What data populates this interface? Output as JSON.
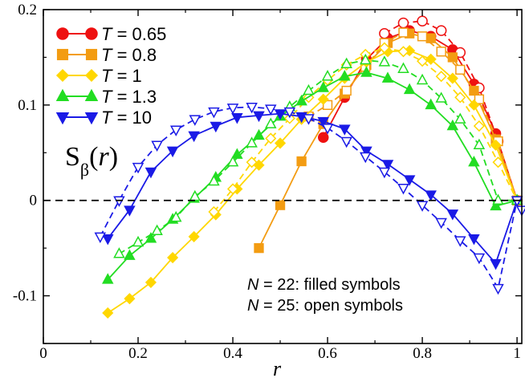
{
  "chart_data": {
    "type": "line",
    "title": "",
    "xlabel": "r",
    "ylabel": "S_β(r)",
    "ylabel_display": "Sβ(r)",
    "xlim": [
      0,
      1.01
    ],
    "ylim": [
      -0.15,
      0.2
    ],
    "xticks": [
      {
        "value": 0,
        "label": "0"
      },
      {
        "value": 0.2,
        "label": "0.2"
      },
      {
        "value": 0.4,
        "label": "0.4"
      },
      {
        "value": 0.6,
        "label": "0.6"
      },
      {
        "value": 0.8,
        "label": "0.8"
      },
      {
        "value": 1,
        "label": "1"
      }
    ],
    "yticks": [
      {
        "value": -0.1,
        "label": "-0.1"
      },
      {
        "value": 0,
        "label": "0"
      },
      {
        "value": 0.1,
        "label": "0.1"
      },
      {
        "value": 0.2,
        "label": "0.2"
      }
    ],
    "zero_line": {
      "style": "dashed",
      "color": "#000000"
    },
    "grid": false,
    "legend": {
      "placement": "top-left",
      "entries": [
        {
          "var": "T",
          "text": " = 0.65"
        },
        {
          "var": "T",
          "text": " = 0.8"
        },
        {
          "var": "T",
          "text": " = 1"
        },
        {
          "var": "T",
          "text": " = 1.3"
        },
        {
          "var": "T",
          "text": " = 10"
        }
      ]
    },
    "annotations": [
      {
        "var": "N",
        "text": " = 22: filled symbols"
      },
      {
        "var": "N",
        "text": " = 25: open symbols"
      }
    ],
    "series": [
      {
        "label": "T = 0.65",
        "size": "N = 22",
        "style": "filled",
        "marker": "circle",
        "color": "#ee1111",
        "x": [
          0.591,
          0.636,
          0.682,
          0.727,
          0.773,
          0.818,
          0.864,
          0.909,
          0.955,
          1.0
        ],
        "y": [
          0.066,
          0.108,
          0.148,
          0.17,
          0.178,
          0.172,
          0.158,
          0.122,
          0.07,
          0.0
        ]
      },
      {
        "label": "T = 0.65",
        "size": "N = 25",
        "style": "open",
        "marker": "circle",
        "color": "#ee1111",
        "x": [
          0.72,
          0.76,
          0.8,
          0.84,
          0.88,
          0.92,
          0.96,
          1.0
        ],
        "y": [
          0.175,
          0.186,
          0.188,
          0.178,
          0.155,
          0.118,
          0.062,
          0.0
        ]
      },
      {
        "label": "T = 0.8",
        "size": "N = 22",
        "style": "filled",
        "marker": "square",
        "color": "#f39c12",
        "x": [
          0.455,
          0.5,
          0.545,
          0.591,
          0.636,
          0.682,
          0.727,
          0.773,
          0.818,
          0.864,
          0.909,
          0.955,
          1.0
        ],
        "y": [
          -0.05,
          -0.005,
          0.041,
          0.08,
          0.112,
          0.142,
          0.165,
          0.175,
          0.17,
          0.15,
          0.115,
          0.064,
          0.0
        ]
      },
      {
        "label": "T = 0.8",
        "size": "N = 25",
        "style": "open",
        "marker": "square",
        "color": "#f39c12",
        "x": [
          0.56,
          0.6,
          0.64,
          0.68,
          0.72,
          0.76,
          0.8,
          0.84,
          0.88,
          0.92,
          0.96,
          1.0
        ],
        "y": [
          0.088,
          0.1,
          0.115,
          0.14,
          0.165,
          0.176,
          0.172,
          0.156,
          0.137,
          0.106,
          0.062,
          0.0
        ]
      },
      {
        "label": "T = 1",
        "size": "N = 22",
        "style": "filled",
        "marker": "diamond",
        "color": "#ffd700",
        "x": [
          0.136,
          0.182,
          0.227,
          0.273,
          0.318,
          0.364,
          0.409,
          0.455,
          0.5,
          0.545,
          0.591,
          0.636,
          0.682,
          0.727,
          0.773,
          0.818,
          0.864,
          0.909,
          0.955,
          1.0
        ],
        "y": [
          -0.118,
          -0.103,
          -0.086,
          -0.06,
          -0.038,
          -0.015,
          0.012,
          0.037,
          0.06,
          0.085,
          0.106,
          0.128,
          0.145,
          0.156,
          0.157,
          0.148,
          0.128,
          0.1,
          0.058,
          0.0
        ]
      },
      {
        "label": "T = 1",
        "size": "N = 25",
        "style": "open",
        "marker": "diamond",
        "color": "#ffd700",
        "x": [
          0.36,
          0.4,
          0.44,
          0.48,
          0.52,
          0.56,
          0.6,
          0.64,
          0.68,
          0.72,
          0.76,
          0.8,
          0.84,
          0.88,
          0.92,
          0.96,
          1.0
        ],
        "y": [
          -0.012,
          0.012,
          0.04,
          0.065,
          0.086,
          0.108,
          0.126,
          0.142,
          0.153,
          0.16,
          0.156,
          0.146,
          0.13,
          0.108,
          0.078,
          0.04,
          0.0
        ]
      },
      {
        "label": "T = 1.3",
        "size": "N = 22",
        "style": "filled",
        "marker": "triangle-up",
        "color": "#22dd22",
        "x": [
          0.136,
          0.182,
          0.227,
          0.273,
          0.318,
          0.364,
          0.409,
          0.455,
          0.5,
          0.545,
          0.591,
          0.636,
          0.682,
          0.727,
          0.773,
          0.818,
          0.864,
          0.909,
          0.955,
          1.0
        ],
        "y": [
          -0.083,
          -0.058,
          -0.04,
          -0.02,
          0.002,
          0.024,
          0.048,
          0.068,
          0.088,
          0.104,
          0.118,
          0.13,
          0.134,
          0.128,
          0.116,
          0.1,
          0.078,
          0.04,
          -0.006,
          0.0
        ]
      },
      {
        "label": "T = 1.3",
        "size": "N = 25",
        "style": "open",
        "marker": "triangle-up",
        "color": "#22dd22",
        "x": [
          0.16,
          0.2,
          0.24,
          0.28,
          0.32,
          0.36,
          0.4,
          0.44,
          0.48,
          0.52,
          0.56,
          0.6,
          0.64,
          0.68,
          0.72,
          0.76,
          0.8,
          0.84,
          0.88,
          0.92,
          0.96,
          1.0
        ],
        "y": [
          -0.056,
          -0.044,
          -0.032,
          -0.018,
          0.004,
          0.02,
          0.04,
          0.06,
          0.08,
          0.098,
          0.115,
          0.13,
          0.143,
          0.147,
          0.145,
          0.138,
          0.126,
          0.107,
          0.085,
          0.058,
          0.0,
          0.0
        ]
      },
      {
        "label": "T = 10",
        "size": "N = 22",
        "style": "filled",
        "marker": "triangle-down",
        "color": "#1a1ae6",
        "x": [
          0.136,
          0.182,
          0.227,
          0.273,
          0.318,
          0.364,
          0.409,
          0.455,
          0.5,
          0.545,
          0.591,
          0.636,
          0.682,
          0.727,
          0.773,
          0.818,
          0.864,
          0.909,
          0.955,
          1.0
        ],
        "y": [
          -0.04,
          -0.01,
          0.03,
          0.052,
          0.068,
          0.078,
          0.087,
          0.089,
          0.091,
          0.088,
          0.083,
          0.075,
          0.052,
          0.038,
          0.022,
          0.006,
          -0.014,
          -0.04,
          -0.066,
          0.0
        ]
      },
      {
        "label": "T = 10",
        "size": "N = 25",
        "style": "open",
        "marker": "triangle-down",
        "color": "#1a1ae6",
        "x": [
          0.12,
          0.16,
          0.2,
          0.24,
          0.28,
          0.32,
          0.36,
          0.4,
          0.44,
          0.48,
          0.52,
          0.56,
          0.6,
          0.64,
          0.68,
          0.72,
          0.76,
          0.8,
          0.84,
          0.88,
          0.92,
          0.96,
          1.0,
          1.01
        ],
        "y": [
          -0.038,
          0.0,
          0.035,
          0.058,
          0.074,
          0.085,
          0.093,
          0.097,
          0.098,
          0.096,
          0.093,
          0.086,
          0.076,
          0.062,
          0.046,
          0.03,
          0.013,
          -0.005,
          -0.023,
          -0.042,
          -0.06,
          -0.092,
          0.0,
          -0.01
        ]
      }
    ]
  }
}
